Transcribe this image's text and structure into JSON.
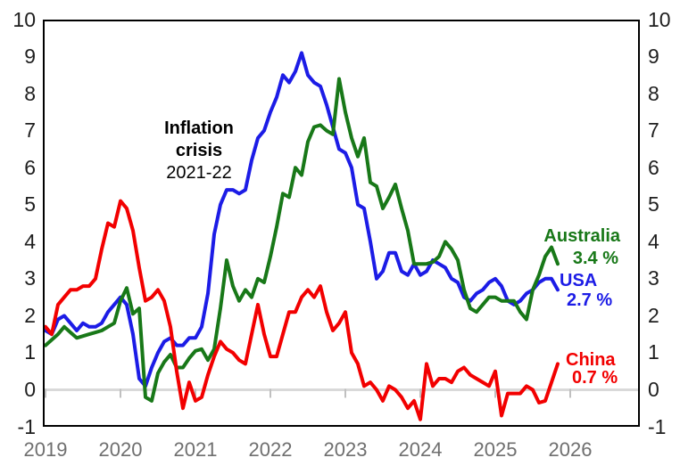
{
  "annotation": {
    "line1": "Inflation",
    "line2": "crisis",
    "line3": "2021-22"
  },
  "series_labels": {
    "australia": {
      "name": "Australia",
      "value": "3.4 %"
    },
    "usa": {
      "name": "USA",
      "value": "2.7 %"
    },
    "china": {
      "name": "China",
      "value": "0.7 %"
    }
  },
  "colors": {
    "australia": "#187818",
    "usa": "#1c1ce6",
    "china": "#f20000",
    "zero_gridline": "#d9d9d9",
    "axis_tick": "#c0c0c0",
    "plot_border": "#000000",
    "y_label_text": "#1f1f1f",
    "x_label_text": "#6f6f6f"
  },
  "chart_data": {
    "type": "line",
    "title": "",
    "xlabel": "",
    "ylabel": "",
    "frequency": "monthly",
    "x_start": "2019-01",
    "x_end": "2025-11",
    "ylim": [
      -1,
      10
    ],
    "y_tick_labels": [
      "10",
      "9",
      "8",
      "7",
      "6",
      "5",
      "4",
      "3",
      "2",
      "1",
      "0",
      "-1"
    ],
    "y_axis_sides": "both",
    "x_tick_labels": [
      "2019",
      "2020",
      "2021",
      "2022",
      "2023",
      "2024",
      "2025",
      "2026"
    ],
    "grid": "zero-line-only",
    "legend_position": "inline-end-labels",
    "annotation": "Inflation crisis 2021-22",
    "series": [
      {
        "name": "USA",
        "color_key": "usa",
        "latest_value": 2.7,
        "values": [
          1.6,
          1.5,
          1.9,
          2.0,
          1.8,
          1.6,
          1.8,
          1.7,
          1.7,
          1.8,
          2.1,
          2.3,
          2.5,
          2.3,
          1.5,
          0.3,
          0.1,
          0.6,
          1.0,
          1.3,
          1.4,
          1.2,
          1.2,
          1.4,
          1.4,
          1.7,
          2.6,
          4.2,
          5.0,
          5.4,
          5.4,
          5.3,
          5.4,
          6.2,
          6.8,
          7.0,
          7.5,
          7.9,
          8.5,
          8.3,
          8.6,
          9.1,
          8.5,
          8.3,
          8.2,
          7.7,
          7.1,
          6.5,
          6.4,
          6.0,
          5.0,
          4.9,
          4.0,
          3.0,
          3.2,
          3.7,
          3.7,
          3.2,
          3.1,
          3.4,
          3.1,
          3.2,
          3.5,
          3.4,
          3.3,
          3.0,
          2.9,
          2.5,
          2.4,
          2.6,
          2.7,
          2.9,
          3.0,
          2.8,
          2.4,
          2.3,
          2.4,
          2.6,
          2.7,
          2.9,
          3.0,
          3.0,
          2.7
        ]
      },
      {
        "name": "Australia",
        "color_key": "australia",
        "latest_value": 3.4,
        "values": [
          1.2,
          1.35,
          1.5,
          1.7,
          1.55,
          1.4,
          1.45,
          1.5,
          1.55,
          1.6,
          1.7,
          1.8,
          2.4,
          2.75,
          2.05,
          2.2,
          -0.2,
          -0.3,
          0.45,
          0.75,
          0.95,
          0.6,
          0.6,
          0.85,
          1.05,
          1.1,
          0.8,
          1.1,
          2.2,
          3.5,
          2.8,
          2.4,
          2.7,
          2.5,
          3.0,
          2.9,
          3.6,
          4.4,
          5.3,
          5.2,
          6.0,
          5.8,
          6.7,
          7.1,
          7.15,
          7.0,
          6.9,
          8.4,
          7.5,
          6.8,
          6.3,
          6.8,
          5.6,
          5.5,
          4.9,
          5.2,
          5.55,
          4.9,
          4.3,
          3.4,
          3.4,
          3.4,
          3.45,
          3.6,
          4.0,
          3.8,
          3.5,
          2.7,
          2.2,
          2.1,
          2.3,
          2.5,
          2.5,
          2.4,
          2.4,
          2.4,
          2.1,
          1.9,
          2.7,
          3.1,
          3.6,
          3.85,
          3.4
        ]
      },
      {
        "name": "China",
        "color_key": "china",
        "latest_value": 0.7,
        "values": [
          1.7,
          1.5,
          2.3,
          2.5,
          2.7,
          2.7,
          2.8,
          2.8,
          3.0,
          3.8,
          4.5,
          4.4,
          5.1,
          4.9,
          4.3,
          3.3,
          2.4,
          2.5,
          2.7,
          2.4,
          1.7,
          0.5,
          -0.5,
          0.2,
          -0.3,
          -0.2,
          0.4,
          0.9,
          1.3,
          1.1,
          1.0,
          0.8,
          0.7,
          1.5,
          2.3,
          1.5,
          0.9,
          0.9,
          1.5,
          2.1,
          2.1,
          2.5,
          2.7,
          2.5,
          2.8,
          2.1,
          1.6,
          1.8,
          2.1,
          1.0,
          0.7,
          0.1,
          0.2,
          0.0,
          -0.3,
          0.1,
          0.0,
          -0.2,
          -0.5,
          -0.3,
          -0.8,
          0.7,
          0.1,
          0.3,
          0.3,
          0.2,
          0.5,
          0.6,
          0.4,
          0.3,
          0.2,
          0.1,
          0.5,
          -0.7,
          -0.1,
          -0.1,
          -0.1,
          0.1,
          0.0,
          -0.35,
          -0.3,
          0.2,
          0.7
        ]
      }
    ]
  }
}
